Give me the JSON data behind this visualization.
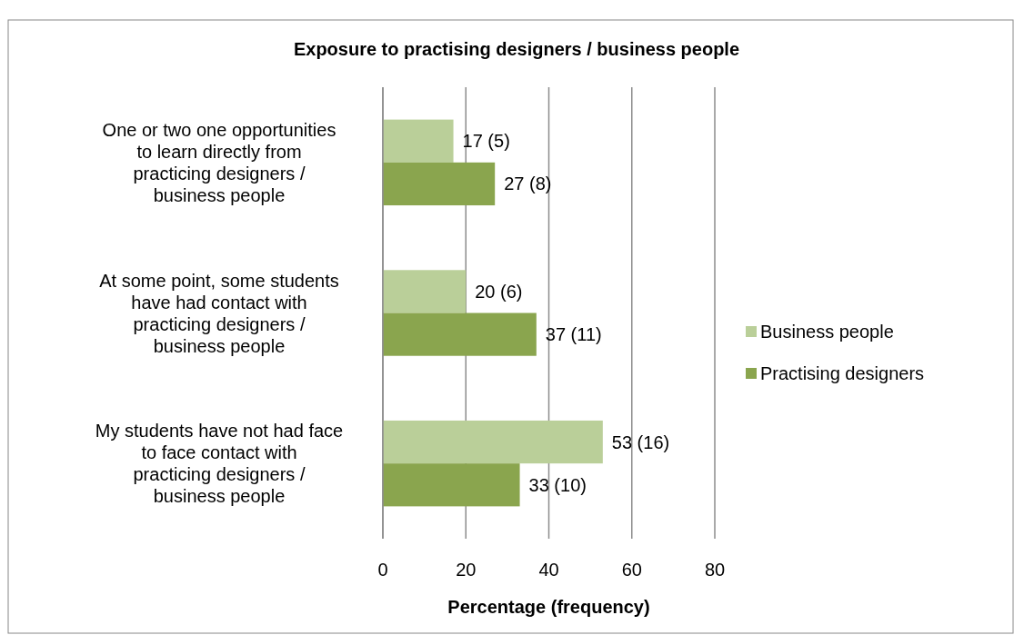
{
  "chart_data": {
    "type": "bar",
    "orientation": "horizontal",
    "title": "Exposure to practising designers / business people",
    "xlabel": "Percentage (frequency)",
    "categories": [
      "One or two one opportunities to learn directly from practicing designers / business people",
      "At some point, some students have had contact with practicing designers / business people",
      "My students have not had face to face contact with practicing designers / business people"
    ],
    "series": [
      {
        "name": "Business people",
        "color": "#bacf99",
        "values": [
          17,
          20,
          53
        ],
        "value_labels": [
          "17 (5)",
          "20 (6)",
          "53 (16)"
        ]
      },
      {
        "name": "Practising designers",
        "color": "#8aa54e",
        "values": [
          27,
          37,
          33
        ],
        "value_labels": [
          "27 (8)",
          "37 (11)",
          "33 (10)"
        ]
      }
    ],
    "xlim": [
      0,
      80
    ],
    "xticks": [
      0,
      20,
      40,
      60,
      80
    ],
    "grid": "x",
    "legend": "right"
  }
}
